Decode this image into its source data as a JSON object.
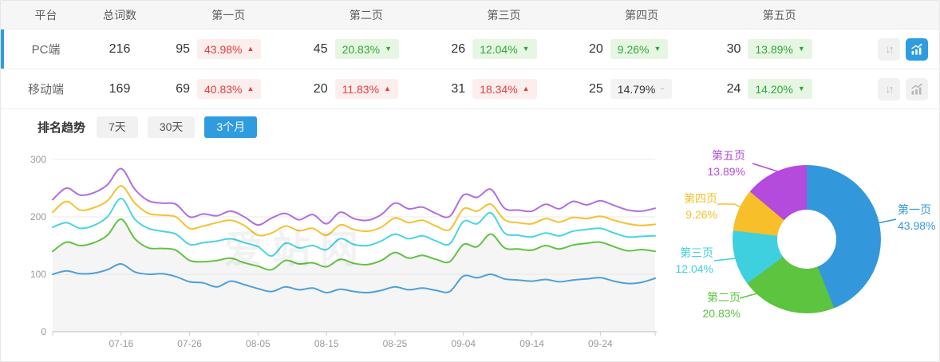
{
  "table": {
    "headers": [
      "平台",
      "总词数",
      "第一页",
      "第二页",
      "第三页",
      "第四页",
      "第五页"
    ],
    "rows": [
      {
        "platform": "PC端",
        "total": "216",
        "selected": true,
        "pages": [
          {
            "count": "95",
            "percent": "43.98%",
            "arrow": "▲",
            "variant": "red"
          },
          {
            "count": "45",
            "percent": "20.83%",
            "arrow": "▼",
            "variant": "green"
          },
          {
            "count": "26",
            "percent": "12.04%",
            "arrow": "▼",
            "variant": "green"
          },
          {
            "count": "20",
            "percent": "9.26%",
            "arrow": "▼",
            "variant": "green"
          },
          {
            "count": "30",
            "percent": "13.89%",
            "arrow": "▼",
            "variant": "green"
          }
        ],
        "actions": {
          "chart_active": true
        }
      },
      {
        "platform": "移动端",
        "total": "169",
        "selected": false,
        "pages": [
          {
            "count": "69",
            "percent": "40.83%",
            "arrow": "▲",
            "variant": "red"
          },
          {
            "count": "20",
            "percent": "11.83%",
            "arrow": "▲",
            "variant": "red"
          },
          {
            "count": "31",
            "percent": "18.34%",
            "arrow": "▲",
            "variant": "red"
          },
          {
            "count": "25",
            "percent": "14.79%",
            "arrow": "−",
            "variant": "gray"
          },
          {
            "count": "24",
            "percent": "14.20%",
            "arrow": "▼",
            "variant": "green"
          }
        ],
        "actions": {
          "chart_active": false
        }
      }
    ]
  },
  "trend": {
    "title": "排名趋势",
    "tabs": [
      {
        "label": "7天"
      },
      {
        "label": "30天"
      },
      {
        "label": "3个月",
        "active": true
      }
    ]
  },
  "watermark": "爱站网",
  "chart_data": [
    {
      "type": "line",
      "title": "排名趋势 3个月",
      "grid": true,
      "legend": "none",
      "ylim": [
        0,
        300
      ],
      "yticks": [
        0,
        100,
        200,
        300
      ],
      "xtick_labels": [
        "07-16",
        "07-26",
        "08-05",
        "08-15",
        "08-25",
        "09-04",
        "09-14",
        "09-24"
      ],
      "xtick_indices": [
        5,
        10,
        15,
        20,
        25,
        30,
        35,
        40
      ],
      "x": [
        "07-06",
        "07-08",
        "07-10",
        "07-12",
        "07-14",
        "07-16",
        "07-18",
        "07-20",
        "07-22",
        "07-24",
        "07-26",
        "07-28",
        "07-30",
        "08-01",
        "08-03",
        "08-05",
        "08-07",
        "08-09",
        "08-11",
        "08-13",
        "08-15",
        "08-17",
        "08-19",
        "08-21",
        "08-23",
        "08-25",
        "08-27",
        "08-29",
        "08-31",
        "09-02",
        "09-04",
        "09-06",
        "09-08",
        "09-10",
        "09-12",
        "09-14",
        "09-16",
        "09-18",
        "09-20",
        "09-22",
        "09-24",
        "09-26",
        "09-28",
        "09-30",
        "10-02"
      ],
      "series": [
        {
          "name": "line1",
          "color": "#4da0db",
          "values": [
            100,
            106,
            101,
            102,
            108,
            118,
            104,
            100,
            101,
            96,
            87,
            85,
            78,
            88,
            82,
            75,
            70,
            78,
            73,
            76,
            68,
            74,
            70,
            68,
            72,
            78,
            73,
            76,
            72,
            70,
            97,
            94,
            100,
            92,
            90,
            88,
            91,
            87,
            90,
            92,
            94,
            88,
            84,
            86,
            93
          ]
        },
        {
          "name": "line2",
          "color": "#62c244",
          "area": true,
          "values": [
            140,
            156,
            150,
            155,
            168,
            196,
            162,
            146,
            145,
            142,
            124,
            122,
            124,
            128,
            120,
            114,
            108,
            124,
            118,
            120,
            113,
            126,
            119,
            117,
            124,
            138,
            128,
            133,
            126,
            122,
            152,
            148,
            170,
            146,
            144,
            142,
            150,
            144,
            151,
            154,
            156,
            148,
            141,
            143,
            140
          ]
        },
        {
          "name": "line3",
          "color": "#49d4e2",
          "values": [
            182,
            190,
            180,
            185,
            200,
            232,
            196,
            180,
            175,
            170,
            152,
            155,
            158,
            162,
            155,
            148,
            132,
            154,
            146,
            150,
            143,
            162,
            152,
            150,
            158,
            170,
            162,
            167,
            158,
            153,
            192,
            188,
            207,
            172,
            168,
            165,
            172,
            167,
            175,
            178,
            180,
            172,
            165,
            166,
            167
          ]
        },
        {
          "name": "line4",
          "color": "#f6c031",
          "values": [
            208,
            227,
            212,
            216,
            228,
            254,
            224,
            206,
            203,
            200,
            180,
            184,
            190,
            194,
            185,
            168,
            172,
            184,
            176,
            180,
            168,
            186,
            178,
            175,
            182,
            198,
            190,
            194,
            184,
            178,
            214,
            210,
            222,
            195,
            190,
            188,
            197,
            191,
            199,
            197,
            201,
            194,
            188,
            185,
            187
          ]
        },
        {
          "name": "line5",
          "color": "#b06fdd",
          "values": [
            230,
            250,
            238,
            242,
            256,
            284,
            248,
            228,
            224,
            222,
            200,
            205,
            202,
            210,
            200,
            186,
            198,
            206,
            195,
            204,
            188,
            208,
            197,
            194,
            204,
            224,
            214,
            217,
            206,
            201,
            238,
            234,
            248,
            215,
            212,
            210,
            222,
            214,
            227,
            221,
            228,
            220,
            212,
            210,
            215
          ]
        }
      ]
    },
    {
      "type": "pie",
      "donut": true,
      "labels": [
        "第一页",
        "第二页",
        "第三页",
        "第四页",
        "第五页"
      ],
      "values": [
        43.98,
        20.83,
        12.04,
        9.26,
        13.89
      ],
      "percent_labels": [
        "43.98%",
        "20.83%",
        "12.04%",
        "9.26%",
        "13.89%"
      ],
      "colors": [
        "#3398db",
        "#5cc43e",
        "#3fd0df",
        "#f7bf2a",
        "#b44bdd"
      ]
    }
  ]
}
